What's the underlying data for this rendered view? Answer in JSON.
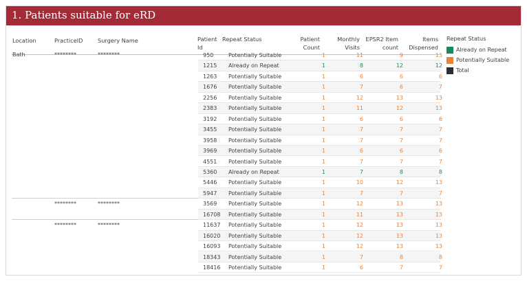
{
  "title": "1. Patients suitable for eRD",
  "columns": {
    "location": "Location",
    "practice_id": "PracticeID",
    "surgery_name": "Surgery Name",
    "patient_id_1": "Patient",
    "patient_id_2": "Id",
    "repeat_status": "Repeat Status",
    "patient_count_1": "Patient",
    "patient_count_2": "Count",
    "monthly_visits_1": "Monthly",
    "monthly_visits_2": "Visits",
    "epsr2_1": "EPSR2 Item",
    "epsr2_2": "count",
    "items_1": "Items",
    "items_2": "Dispensed"
  },
  "location": "Bath",
  "groups": [
    {
      "practice_id": "********",
      "surgery_name": "********"
    },
    {
      "practice_id": "********",
      "surgery_name": "********"
    },
    {
      "practice_id": "********",
      "surgery_name": "********"
    }
  ],
  "colors": {
    "already": "#1a8a5c",
    "potential": "#e8833a",
    "total": "#2b2f36"
  },
  "rows": [
    {
      "pid": "950",
      "status": "Potentially Suitable",
      "type": "potential",
      "pc": "1",
      "mv": "11",
      "ep": "9",
      "it": "13"
    },
    {
      "pid": "1215",
      "status": "Already on Repeat",
      "type": "already",
      "pc": "1",
      "mv": "8",
      "ep": "12",
      "it": "12"
    },
    {
      "pid": "1263",
      "status": "Potentially Suitable",
      "type": "potential",
      "pc": "1",
      "mv": "6",
      "ep": "6",
      "it": "6"
    },
    {
      "pid": "1676",
      "status": "Potentially Suitable",
      "type": "potential",
      "pc": "1",
      "mv": "7",
      "ep": "6",
      "it": "7"
    },
    {
      "pid": "2256",
      "status": "Potentially Suitable",
      "type": "potential",
      "pc": "1",
      "mv": "12",
      "ep": "13",
      "it": "13"
    },
    {
      "pid": "2383",
      "status": "Potentially Suitable",
      "type": "potential",
      "pc": "1",
      "mv": "11",
      "ep": "12",
      "it": "13"
    },
    {
      "pid": "3192",
      "status": "Potentially Suitable",
      "type": "potential",
      "pc": "1",
      "mv": "6",
      "ep": "6",
      "it": "6"
    },
    {
      "pid": "3455",
      "status": "Potentially Suitable",
      "type": "potential",
      "pc": "1",
      "mv": "7",
      "ep": "7",
      "it": "7"
    },
    {
      "pid": "3958",
      "status": "Potentially Suitable",
      "type": "potential",
      "pc": "1",
      "mv": "7",
      "ep": "7",
      "it": "7"
    },
    {
      "pid": "3969",
      "status": "Potentially Suitable",
      "type": "potential",
      "pc": "1",
      "mv": "6",
      "ep": "6",
      "it": "6"
    },
    {
      "pid": "4551",
      "status": "Potentially Suitable",
      "type": "potential",
      "pc": "1",
      "mv": "7",
      "ep": "7",
      "it": "7"
    },
    {
      "pid": "5360",
      "status": "Already on Repeat",
      "type": "already",
      "pc": "1",
      "mv": "7",
      "ep": "8",
      "it": "8"
    },
    {
      "pid": "5446",
      "status": "Potentially Suitable",
      "type": "potential",
      "pc": "1",
      "mv": "10",
      "ep": "12",
      "it": "13"
    },
    {
      "pid": "5947",
      "status": "Potentially Suitable",
      "type": "potential",
      "pc": "1",
      "mv": "7",
      "ep": "7",
      "it": "7"
    },
    {
      "pid": "3569",
      "status": "Potentially Suitable",
      "type": "potential",
      "pc": "1",
      "mv": "12",
      "ep": "13",
      "it": "13"
    },
    {
      "pid": "16708",
      "status": "Potentially Suitable",
      "type": "potential",
      "pc": "1",
      "mv": "11",
      "ep": "13",
      "it": "13"
    },
    {
      "pid": "11637",
      "status": "Potentially Suitable",
      "type": "potential",
      "pc": "1",
      "mv": "12",
      "ep": "13",
      "it": "13"
    },
    {
      "pid": "16020",
      "status": "Potentially Suitable",
      "type": "potential",
      "pc": "1",
      "mv": "12",
      "ep": "13",
      "it": "13"
    },
    {
      "pid": "16093",
      "status": "Potentially Suitable",
      "type": "potential",
      "pc": "1",
      "mv": "12",
      "ep": "13",
      "it": "13"
    },
    {
      "pid": "18343",
      "status": "Potentially Suitable",
      "type": "potential",
      "pc": "1",
      "mv": "7",
      "ep": "8",
      "it": "8"
    },
    {
      "pid": "18416",
      "status": "Potentially Suitable",
      "type": "potential",
      "pc": "1",
      "mv": "6",
      "ep": "7",
      "it": "7"
    }
  ],
  "legend": {
    "title": "Repeat Status",
    "items": [
      {
        "label": "Already on Repeat",
        "color": "#1a8a5c"
      },
      {
        "label": "Potentially Suitable",
        "color": "#e8833a"
      },
      {
        "label": "Total",
        "color": "#2b2f36"
      }
    ]
  }
}
